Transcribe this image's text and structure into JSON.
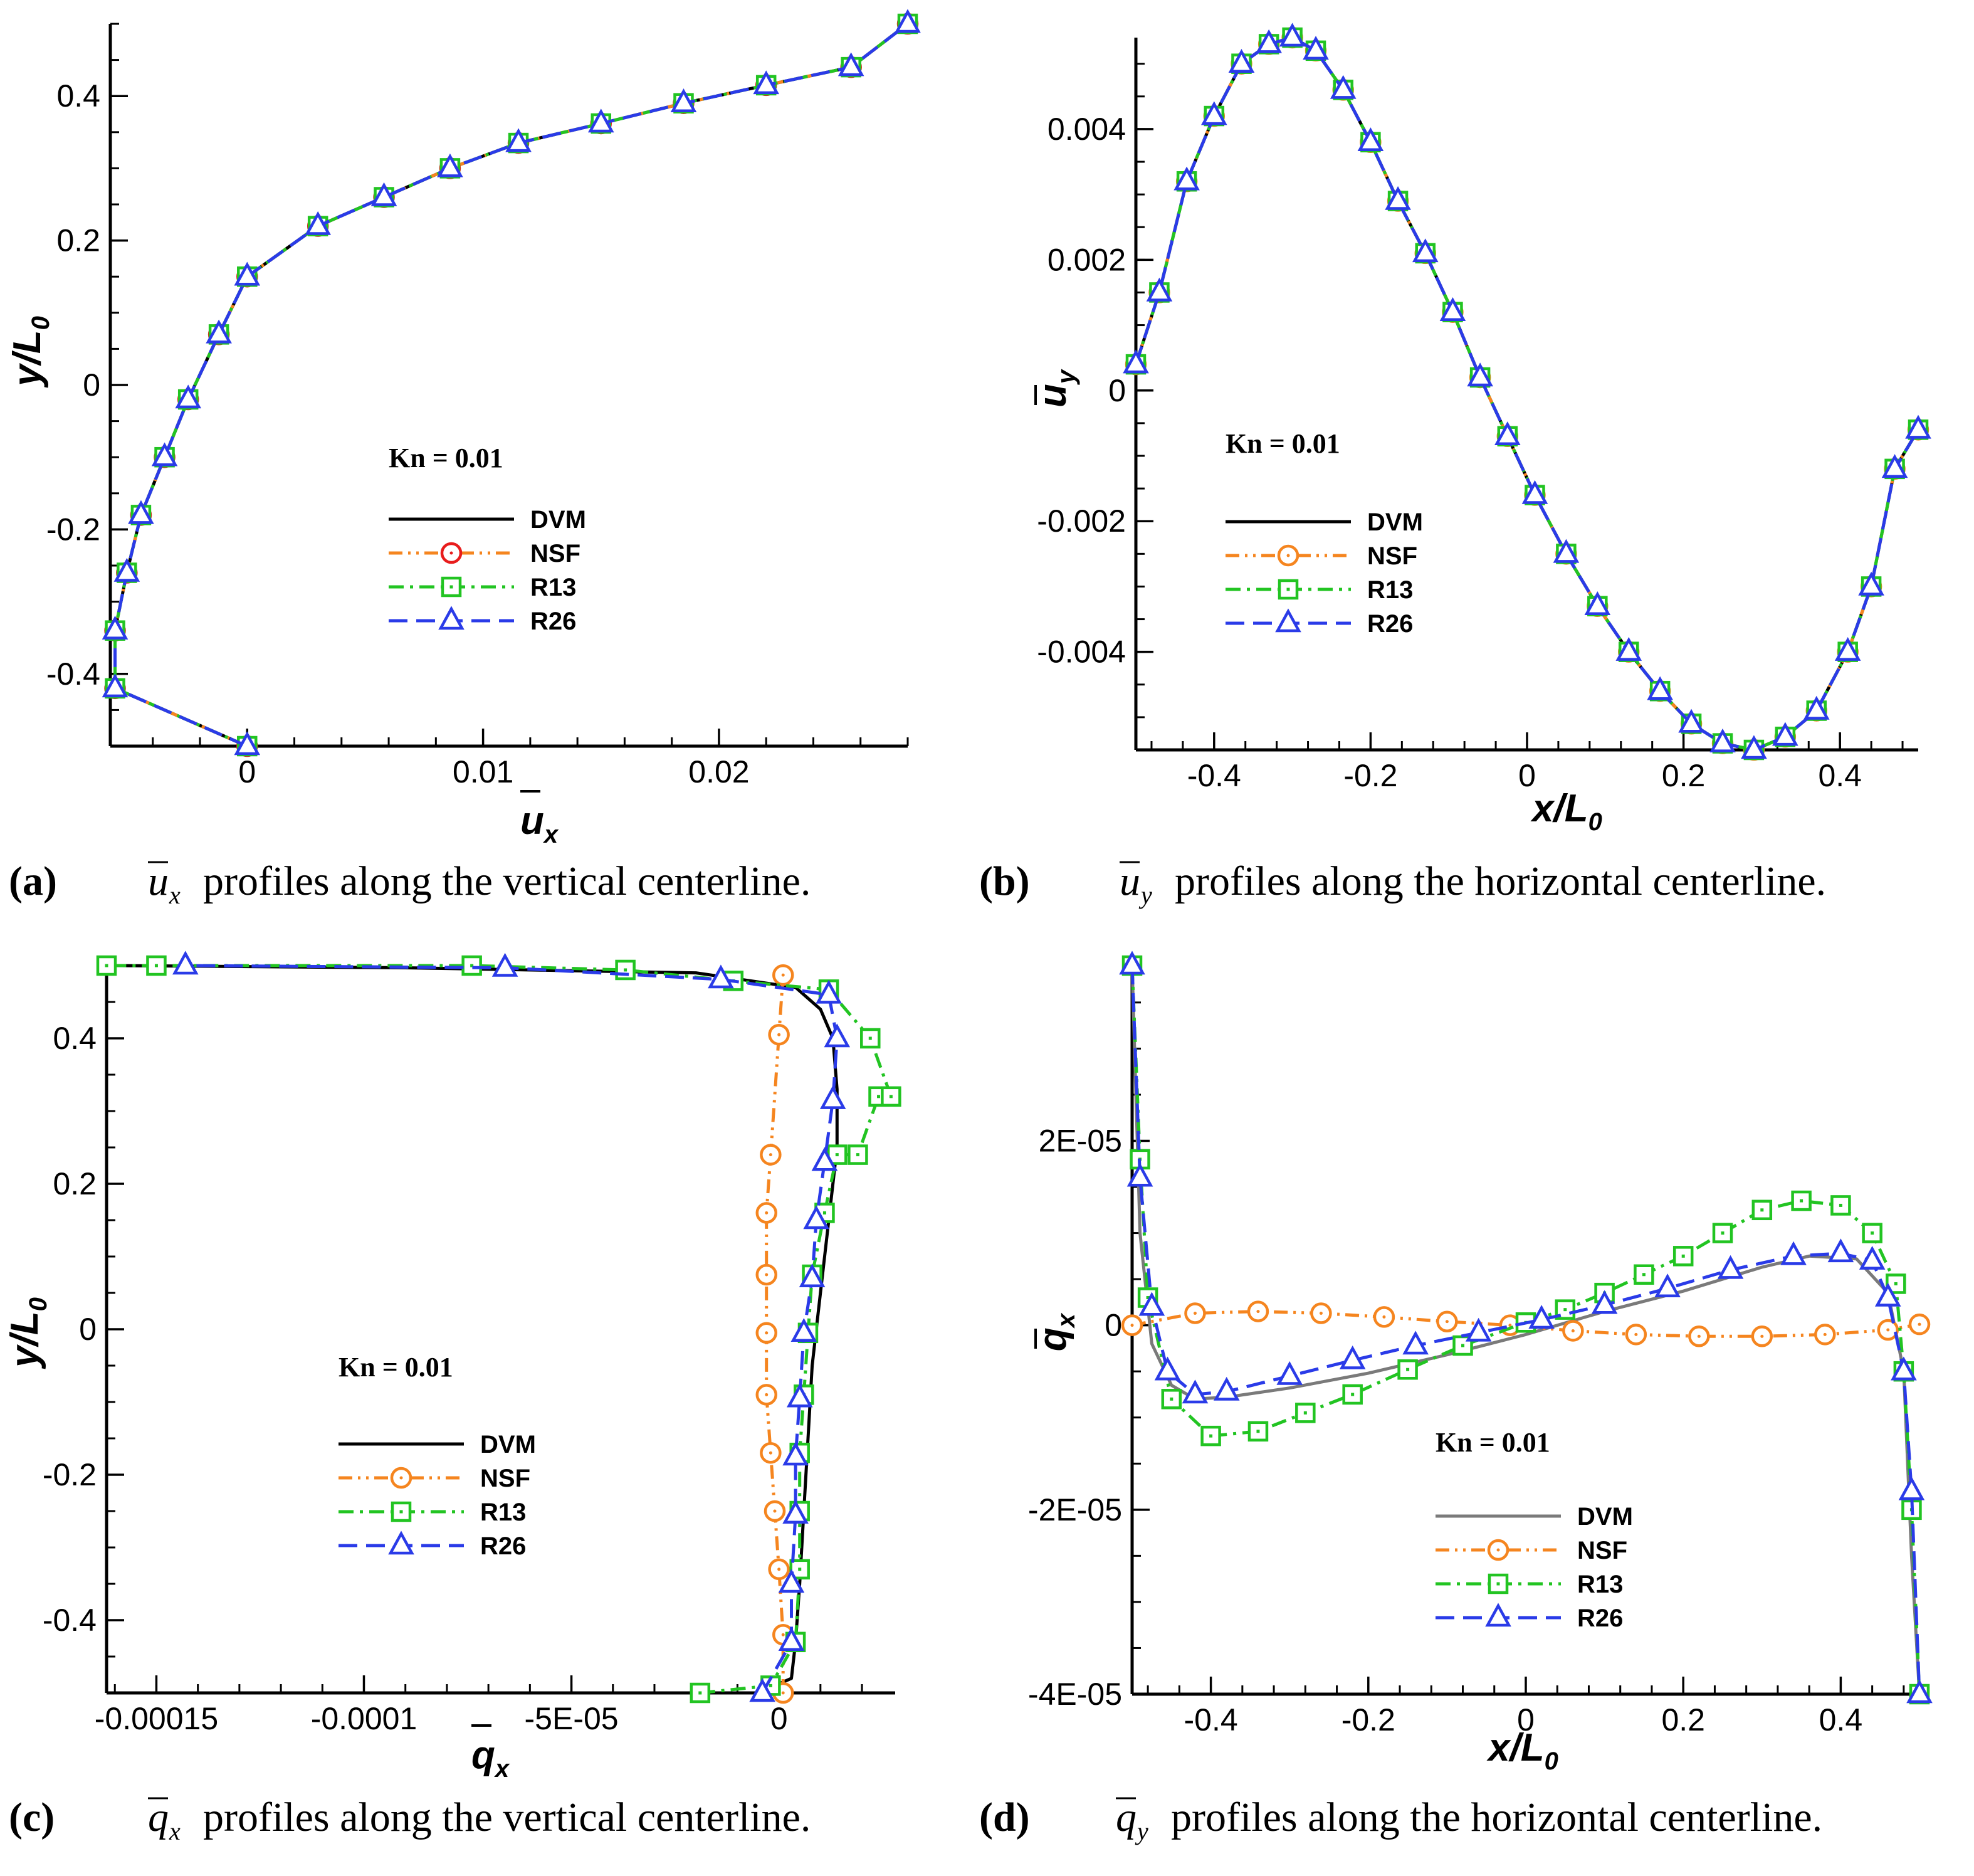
{
  "styles": {
    "DVM": {
      "color": "#000000",
      "dash": "",
      "marker": "none"
    },
    "DVM_d": {
      "color": "#7a7a7a",
      "dash": "",
      "marker": "none"
    },
    "NSF": {
      "color": "#f5851f",
      "dash": "22,9,4,9,4,9",
      "marker": "circle"
    },
    "NSF_a": {
      "color": "#f5851f",
      "dash": "22,9,4,9,4,9",
      "marker": "circle-red"
    },
    "R13": {
      "color": "#22c422",
      "dash": "24,10,5,10",
      "marker": "square"
    },
    "R26": {
      "color": "#2a3be8",
      "dash": "30,14",
      "marker": "triangle"
    }
  },
  "chart_data": [
    {
      "id": "a",
      "type": "line",
      "xlabel": "u",
      "xlabel_sub": "x",
      "ylabel": "y/L",
      "ylabel_sub": "0",
      "knudsen": "Kn = 0.01",
      "xlim": [
        -0.0058,
        0.028
      ],
      "ylim": [
        -0.5,
        0.5
      ],
      "xticks": [
        0,
        0.01,
        0.02
      ],
      "xticklabels": [
        "0",
        "0.01",
        "0.02"
      ],
      "yticks": [
        -0.4,
        -0.2,
        0,
        0.2,
        0.4
      ],
      "yticklabels": [
        "-0.4",
        "-0.2",
        "0",
        "0.2",
        "0.4"
      ],
      "caption": {
        "label": "(a)",
        "symbol": "u",
        "sub": "x",
        "text": "profiles along the vertical centerline."
      },
      "legend": [
        "DVM",
        "NSF",
        "R13",
        "R26"
      ],
      "series": [
        {
          "name": "DVM",
          "style": "DVM",
          "x": [
            0,
            -0.0056,
            -0.0056,
            -0.0051,
            -0.0045,
            -0.0035,
            -0.0025,
            -0.0012,
            0,
            0.003,
            0.0058,
            0.0086,
            0.0115,
            0.015,
            0.0185,
            0.022,
            0.0256,
            0.028
          ],
          "y": [
            -0.5,
            -0.42,
            -0.34,
            -0.26,
            -0.18,
            -0.1,
            -0.02,
            0.07,
            0.15,
            0.22,
            0.26,
            0.3,
            0.335,
            0.362,
            0.39,
            0.415,
            0.44,
            0.5
          ]
        },
        {
          "name": "NSF",
          "style": "NSF_a",
          "x": [
            0,
            -0.0056,
            -0.0056,
            -0.0051,
            -0.0045,
            -0.0035,
            -0.0025,
            -0.0012,
            0,
            0.003,
            0.0058,
            0.0086,
            0.0115,
            0.015,
            0.0185,
            0.022,
            0.0256,
            0.028
          ],
          "y": [
            -0.5,
            -0.42,
            -0.34,
            -0.26,
            -0.18,
            -0.1,
            -0.02,
            0.07,
            0.15,
            0.22,
            0.26,
            0.3,
            0.335,
            0.362,
            0.39,
            0.415,
            0.44,
            0.5
          ]
        },
        {
          "name": "R13",
          "style": "R13",
          "x": [
            0,
            -0.0056,
            -0.0056,
            -0.0051,
            -0.0045,
            -0.0035,
            -0.0025,
            -0.0012,
            0,
            0.003,
            0.0058,
            0.0086,
            0.0115,
            0.015,
            0.0185,
            0.022,
            0.0256,
            0.028
          ],
          "y": [
            -0.5,
            -0.42,
            -0.34,
            -0.26,
            -0.18,
            -0.1,
            -0.02,
            0.07,
            0.15,
            0.22,
            0.26,
            0.3,
            0.335,
            0.362,
            0.39,
            0.415,
            0.44,
            0.5
          ]
        },
        {
          "name": "R26",
          "style": "R26",
          "x": [
            0,
            -0.0056,
            -0.0056,
            -0.0051,
            -0.0045,
            -0.0035,
            -0.0025,
            -0.0012,
            0,
            0.003,
            0.0058,
            0.0086,
            0.0115,
            0.015,
            0.0185,
            0.022,
            0.0256,
            0.028
          ],
          "y": [
            -0.5,
            -0.42,
            -0.34,
            -0.26,
            -0.18,
            -0.1,
            -0.02,
            0.07,
            0.15,
            0.22,
            0.26,
            0.3,
            0.335,
            0.362,
            0.39,
            0.415,
            0.44,
            0.5
          ]
        }
      ]
    },
    {
      "id": "b",
      "type": "line",
      "xlabel": "x/L",
      "xlabel_sub": "0",
      "ylabel": "u",
      "ylabel_sub": "y",
      "knudsen": "Kn = 0.01",
      "xlim": [
        -0.5,
        0.5
      ],
      "ylim": [
        -0.0055,
        0.0054
      ],
      "xticks": [
        -0.4,
        -0.2,
        0,
        0.2,
        0.4
      ],
      "xticklabels": [
        "-0.4",
        "-0.2",
        "0",
        "0.2",
        "0.4"
      ],
      "yticks": [
        -0.004,
        -0.002,
        0,
        0.002,
        0.004
      ],
      "yticklabels": [
        "-0.004",
        "-0.002",
        "0",
        "0.002",
        "0.004"
      ],
      "caption": {
        "label": "(b)",
        "symbol": "u",
        "sub": "y",
        "text": "profiles along the horizontal centerline."
      },
      "legend": [
        "DVM",
        "NSF",
        "R13",
        "R26"
      ],
      "series": [
        {
          "name": "DVM",
          "style": "DVM",
          "x": [
            -0.5,
            -0.47,
            -0.435,
            -0.4,
            -0.365,
            -0.33,
            -0.3,
            -0.27,
            -0.235,
            -0.2,
            -0.165,
            -0.13,
            -0.095,
            -0.06,
            -0.025,
            0.01,
            0.05,
            0.09,
            0.13,
            0.17,
            0.21,
            0.25,
            0.29,
            0.33,
            0.37,
            0.41,
            0.44,
            0.47,
            0.5
          ],
          "y": [
            0.0004,
            0.0015,
            0.0032,
            0.0042,
            0.005,
            0.0053,
            0.0054,
            0.0052,
            0.0046,
            0.0038,
            0.0029,
            0.0021,
            0.0012,
            0.0002,
            -0.0007,
            -0.0016,
            -0.0025,
            -0.0033,
            -0.004,
            -0.0046,
            -0.0051,
            -0.0054,
            -0.0055,
            -0.0053,
            -0.0049,
            -0.004,
            -0.003,
            -0.0012,
            -0.0006
          ]
        },
        {
          "name": "NSF",
          "style": "NSF",
          "x": [
            -0.5,
            -0.47,
            -0.435,
            -0.4,
            -0.365,
            -0.33,
            -0.3,
            -0.27,
            -0.235,
            -0.2,
            -0.165,
            -0.13,
            -0.095,
            -0.06,
            -0.025,
            0.01,
            0.05,
            0.09,
            0.13,
            0.17,
            0.21,
            0.25,
            0.29,
            0.33,
            0.37,
            0.41,
            0.44,
            0.47,
            0.5
          ],
          "y": [
            0.0004,
            0.0015,
            0.0032,
            0.0042,
            0.005,
            0.0053,
            0.0054,
            0.0052,
            0.0046,
            0.0038,
            0.0029,
            0.0021,
            0.0012,
            0.0002,
            -0.0007,
            -0.0016,
            -0.0025,
            -0.0033,
            -0.004,
            -0.0046,
            -0.0051,
            -0.0054,
            -0.0055,
            -0.0053,
            -0.0049,
            -0.004,
            -0.003,
            -0.0012,
            -0.0006
          ]
        },
        {
          "name": "R13",
          "style": "R13",
          "x": [
            -0.5,
            -0.47,
            -0.435,
            -0.4,
            -0.365,
            -0.33,
            -0.3,
            -0.27,
            -0.235,
            -0.2,
            -0.165,
            -0.13,
            -0.095,
            -0.06,
            -0.025,
            0.01,
            0.05,
            0.09,
            0.13,
            0.17,
            0.21,
            0.25,
            0.29,
            0.33,
            0.37,
            0.41,
            0.44,
            0.47,
            0.5
          ],
          "y": [
            0.0004,
            0.0015,
            0.0032,
            0.0042,
            0.005,
            0.0053,
            0.0054,
            0.0052,
            0.0046,
            0.0038,
            0.0029,
            0.0021,
            0.0012,
            0.0002,
            -0.0007,
            -0.0016,
            -0.0025,
            -0.0033,
            -0.004,
            -0.0046,
            -0.0051,
            -0.0054,
            -0.0055,
            -0.0053,
            -0.0049,
            -0.004,
            -0.003,
            -0.0012,
            -0.0006
          ]
        },
        {
          "name": "R26",
          "style": "R26",
          "x": [
            -0.5,
            -0.47,
            -0.435,
            -0.4,
            -0.365,
            -0.33,
            -0.3,
            -0.27,
            -0.235,
            -0.2,
            -0.165,
            -0.13,
            -0.095,
            -0.06,
            -0.025,
            0.01,
            0.05,
            0.09,
            0.13,
            0.17,
            0.21,
            0.25,
            0.29,
            0.33,
            0.37,
            0.41,
            0.44,
            0.47,
            0.5
          ],
          "y": [
            0.0004,
            0.0015,
            0.0032,
            0.0042,
            0.005,
            0.0053,
            0.0054,
            0.0052,
            0.0046,
            0.0038,
            0.0029,
            0.0021,
            0.0012,
            0.0002,
            -0.0007,
            -0.0016,
            -0.0025,
            -0.0033,
            -0.004,
            -0.0046,
            -0.0051,
            -0.0054,
            -0.0055,
            -0.0053,
            -0.0049,
            -0.004,
            -0.003,
            -0.0012,
            -0.0006
          ]
        }
      ]
    },
    {
      "id": "c",
      "type": "line",
      "xlabel": "q",
      "xlabel_sub": "x",
      "ylabel": "y/L",
      "ylabel_sub": "0",
      "knudsen": "Kn = 0.01",
      "xlim": [
        -0.000162,
        2.8e-05
      ],
      "ylim": [
        -0.5,
        0.5
      ],
      "xticks": [
        -0.00015,
        -0.0001,
        -5e-05,
        0
      ],
      "xticklabels": [
        "-0.00015",
        "-0.0001",
        "-5E-05",
        "0"
      ],
      "yticks": [
        -0.4,
        -0.2,
        0,
        0.2,
        0.4
      ],
      "yticklabels": [
        "-0.4",
        "-0.2",
        "0",
        "0.2",
        "0.4"
      ],
      "caption": {
        "label": "(c)",
        "symbol": "q",
        "sub": "x",
        "text": "profiles along the vertical centerline."
      },
      "legend": [
        "DVM",
        "NSF",
        "R13",
        "R26"
      ],
      "series": [
        {
          "name": "DVM",
          "style": "DVM",
          "x": [
            -5e-06,
            3e-06,
            4e-06,
            5e-06,
            6e-06,
            7e-06,
            8e-06,
            1e-05,
            1.2e-05,
            1.4e-05,
            1.4e-05,
            1.3e-05,
            1e-05,
            4e-06,
            -2e-05,
            -9e-05,
            -0.00016
          ],
          "y": [
            -0.5,
            -0.48,
            -0.43,
            -0.35,
            -0.25,
            -0.15,
            -0.05,
            0.05,
            0.15,
            0.25,
            0.33,
            0.4,
            0.44,
            0.47,
            0.49,
            0.497,
            0.5
          ]
        },
        {
          "name": "NSF",
          "style": "NSF",
          "x": [
            1e-06,
            1e-06,
            0.0,
            -1e-06,
            -2e-06,
            -3e-06,
            -3e-06,
            -3e-06,
            -3e-06,
            -2e-06,
            0.0,
            1e-06
          ],
          "y": [
            -0.5,
            -0.42,
            -0.33,
            -0.25,
            -0.17,
            -0.09,
            -0.005,
            0.075,
            0.16,
            0.24,
            0.405,
            0.487
          ]
        },
        {
          "name": "R13",
          "style": "R13",
          "x": [
            -1.9e-05,
            -2e-06,
            4e-06,
            5e-06,
            5e-06,
            5e-06,
            6e-06,
            7e-06,
            8e-06,
            1.1e-05,
            1.4e-05,
            1.9e-05,
            2.4e-05,
            2.7e-05,
            2.2e-05,
            1.2e-05,
            -1.1e-05,
            -3.7e-05,
            -7.4e-05,
            -0.00015,
            -0.000162
          ],
          "y": [
            -0.5,
            -0.49,
            -0.43,
            -0.33,
            -0.25,
            -0.17,
            -0.09,
            -0.005,
            0.075,
            0.16,
            0.24,
            0.24,
            0.32,
            0.32,
            0.4,
            0.467,
            0.479,
            0.494,
            0.5,
            0.5,
            0.5
          ]
        },
        {
          "name": "R26",
          "style": "R26",
          "x": [
            -4e-06,
            3e-06,
            3e-06,
            4e-06,
            4e-06,
            5e-06,
            6e-06,
            8e-06,
            9e-06,
            1.1e-05,
            1.1e-05,
            1.3e-05,
            1.4e-05,
            1.2e-05,
            -1.4e-05,
            -6.6e-05,
            -0.000143
          ],
          "y": [
            -0.5,
            -0.43,
            -0.35,
            -0.255,
            -0.175,
            -0.095,
            -0.005,
            0.07,
            0.15,
            0.23,
            0.23,
            0.315,
            0.4,
            0.46,
            0.481,
            0.497,
            0.5
          ]
        }
      ]
    },
    {
      "id": "d",
      "type": "line",
      "xlabel": "x/L",
      "xlabel_sub": "0",
      "ylabel": "q",
      "ylabel_sub": "x",
      "knudsen": "Kn = 0.01",
      "xlim": [
        -0.5,
        0.5
      ],
      "ylim": [
        -4e-05,
        3.9e-05
      ],
      "xticks": [
        -0.4,
        -0.2,
        0,
        0.2,
        0.4
      ],
      "xticklabels": [
        "-0.4",
        "-0.2",
        "0",
        "0.2",
        "0.4"
      ],
      "yticks": [
        -4e-05,
        -2e-05,
        0,
        2e-05
      ],
      "yticklabels": [
        "-4E-05",
        "-2E-05",
        "0",
        "2E-05"
      ],
      "caption": {
        "label": "(d)",
        "symbol": "q",
        "sub": "y",
        "text": "profiles along the horizontal centerline."
      },
      "legend": [
        "DVM",
        "NSF",
        "R13",
        "R26"
      ],
      "series": [
        {
          "name": "DVM",
          "style": "DVM_d",
          "x": [
            -0.5,
            -0.49,
            -0.475,
            -0.45,
            -0.42,
            -0.38,
            -0.3,
            -0.2,
            -0.1,
            0.0,
            0.1,
            0.2,
            0.3,
            0.36,
            0.42,
            0.46,
            0.48,
            0.49,
            0.5
          ],
          "y": [
            3.9e-05,
            1e-05,
            -2e-06,
            -6.5e-06,
            -8e-06,
            -7.8e-06,
            -6.8e-06,
            -5.2e-06,
            -3.2e-06,
            -1e-06,
            1.5e-06,
            3.7e-06,
            6.3e-06,
            7.5e-06,
            7.2e-06,
            3.5e-06,
            -5e-06,
            -2.5e-05,
            -4e-05
          ]
        },
        {
          "name": "NSF",
          "style": "NSF",
          "x": [
            -0.5,
            -0.42,
            -0.34,
            -0.26,
            -0.18,
            -0.1,
            -0.02,
            0.06,
            0.14,
            0.22,
            0.3,
            0.38,
            0.46,
            0.5
          ],
          "y": [
            0.0,
            1.3e-06,
            1.5e-06,
            1.3e-06,
            9e-07,
            4e-07,
            0.0,
            -6e-07,
            -1e-06,
            -1.2e-06,
            -1.2e-06,
            -1e-06,
            -5e-07,
            1e-07
          ]
        },
        {
          "name": "R13",
          "style": "R13",
          "x": [
            -0.5,
            -0.49,
            -0.48,
            -0.45,
            -0.4,
            -0.34,
            -0.28,
            -0.22,
            -0.15,
            -0.08,
            0.0,
            0.05,
            0.1,
            0.15,
            0.2,
            0.25,
            0.3,
            0.35,
            0.4,
            0.44,
            0.47,
            0.48,
            0.49,
            0.5
          ],
          "y": [
            3.9e-05,
            1.8e-05,
            3e-06,
            -8e-06,
            -1.2e-05,
            -1.15e-05,
            -9.5e-06,
            -7.5e-06,
            -4.8e-06,
            -2.2e-06,
            3e-07,
            1.7e-06,
            3.5e-06,
            5.5e-06,
            7.5e-06,
            1e-05,
            1.25e-05,
            1.35e-05,
            1.3e-05,
            1e-05,
            4.5e-06,
            -5e-06,
            -2e-05,
            -4e-05
          ]
        },
        {
          "name": "R26",
          "style": "R26",
          "x": [
            -0.5,
            -0.49,
            -0.475,
            -0.455,
            -0.42,
            -0.38,
            -0.3,
            -0.22,
            -0.14,
            -0.06,
            0.02,
            0.1,
            0.18,
            0.26,
            0.34,
            0.4,
            0.44,
            0.46,
            0.48,
            0.49,
            0.5
          ],
          "y": [
            3.9e-05,
            1.6e-05,
            2e-06,
            -5e-06,
            -7.5e-06,
            -7.2e-06,
            -5.5e-06,
            -3.8e-06,
            -2.2e-06,
            -8e-07,
            6e-07,
            2.2e-06,
            4e-06,
            6e-06,
            7.5e-06,
            7.8e-06,
            7e-06,
            3e-06,
            -5e-06,
            -1.8e-05,
            -4e-05
          ]
        }
      ]
    }
  ]
}
